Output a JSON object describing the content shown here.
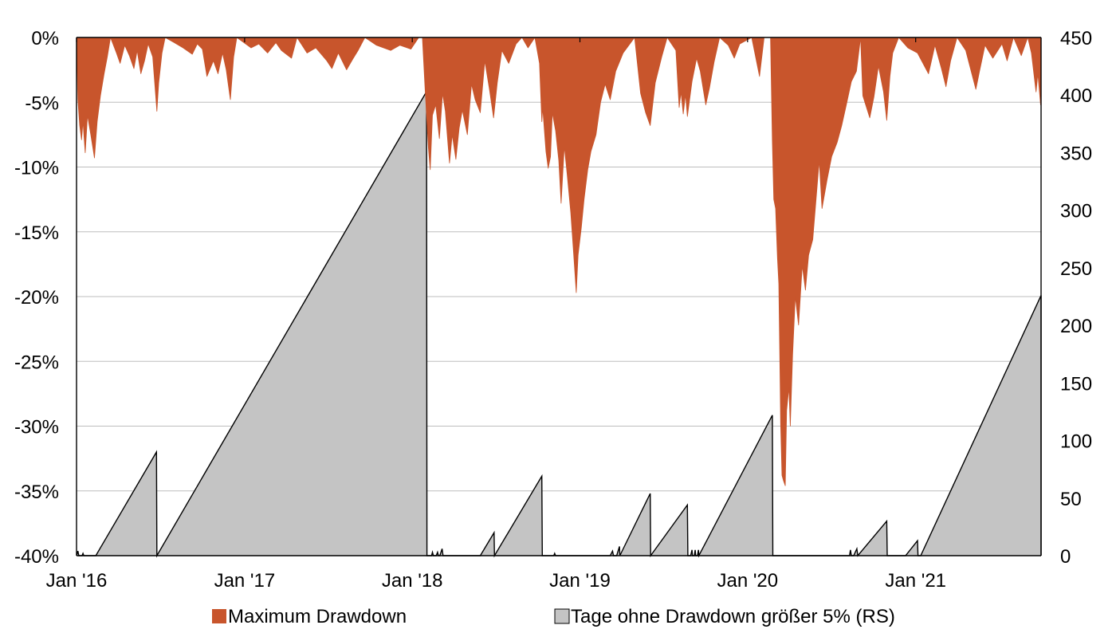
{
  "chart_data": {
    "type": "area",
    "x_ticks": [
      "Jan '16",
      "Jan '17",
      "Jan '18",
      "Jan '19",
      "Jan '20",
      "Jan '21"
    ],
    "x_range": [
      "2016-01-01",
      "2021-10-01"
    ],
    "y_left": {
      "ticks": [
        "0%",
        "-5%",
        "-10%",
        "-15%",
        "-20%",
        "-25%",
        "-30%",
        "-35%",
        "-40%"
      ],
      "min": -40,
      "max": 0
    },
    "y_right": {
      "ticks": [
        "450",
        "400",
        "350",
        "300",
        "250",
        "200",
        "150",
        "100",
        "50",
        "0"
      ],
      "min": 0,
      "max": 450
    },
    "grid": true,
    "legend_position": "bottom",
    "colors": {
      "drawdown": "#C8552C",
      "days": "#C4C4C4",
      "days_outline": "#000000",
      "grid": "#BDBDBD"
    },
    "series": [
      {
        "name": "Maximum Drawdown",
        "axis": "left",
        "type": "area",
        "points": [
          [
            "2016-01-01",
            0
          ],
          [
            "2016-01-04",
            -4.8
          ],
          [
            "2016-01-08",
            -6.8
          ],
          [
            "2016-01-12",
            -7.9
          ],
          [
            "2016-01-15",
            -6.5
          ],
          [
            "2016-01-20",
            -8.9
          ],
          [
            "2016-01-25",
            -6.0
          ],
          [
            "2016-02-01",
            -7.5
          ],
          [
            "2016-02-09",
            -9.3
          ],
          [
            "2016-02-15",
            -6.5
          ],
          [
            "2016-02-22",
            -4.5
          ],
          [
            "2016-03-01",
            -2.8
          ],
          [
            "2016-03-08",
            -1.5
          ],
          [
            "2016-03-15",
            0
          ],
          [
            "2016-03-28",
            -1.2
          ],
          [
            "2016-04-05",
            -2.0
          ],
          [
            "2016-04-15",
            -0.6
          ],
          [
            "2016-04-25",
            -1.4
          ],
          [
            "2016-05-05",
            -2.4
          ],
          [
            "2016-05-12",
            -1.0
          ],
          [
            "2016-05-20",
            -2.8
          ],
          [
            "2016-05-28",
            -1.8
          ],
          [
            "2016-06-05",
            -0.5
          ],
          [
            "2016-06-15",
            -1.5
          ],
          [
            "2016-06-24",
            -5.7
          ],
          [
            "2016-06-28",
            -3.5
          ],
          [
            "2016-07-05",
            -1.2
          ],
          [
            "2016-07-12",
            0
          ],
          [
            "2016-08-01",
            -0.4
          ],
          [
            "2016-08-20",
            -0.8
          ],
          [
            "2016-09-09",
            -1.3
          ],
          [
            "2016-09-20",
            -0.5
          ],
          [
            "2016-10-01",
            -0.9
          ],
          [
            "2016-10-11",
            -3.0
          ],
          [
            "2016-10-25",
            -1.8
          ],
          [
            "2016-11-04",
            -2.8
          ],
          [
            "2016-11-14",
            -1.2
          ],
          [
            "2016-11-22",
            -2.5
          ],
          [
            "2016-12-01",
            -4.8
          ],
          [
            "2016-12-08",
            -1.5
          ],
          [
            "2016-12-15",
            0
          ],
          [
            "2017-01-15",
            -0.8
          ],
          [
            "2017-02-01",
            -0.5
          ],
          [
            "2017-02-20",
            -1.2
          ],
          [
            "2017-03-10",
            -0.4
          ],
          [
            "2017-03-22",
            -1.0
          ],
          [
            "2017-04-13",
            -1.6
          ],
          [
            "2017-04-25",
            0
          ],
          [
            "2017-05-17",
            -1.2
          ],
          [
            "2017-06-05",
            -0.8
          ],
          [
            "2017-06-29",
            -1.8
          ],
          [
            "2017-07-10",
            -2.4
          ],
          [
            "2017-07-24",
            -1.2
          ],
          [
            "2017-08-11",
            -2.5
          ],
          [
            "2017-08-24",
            -1.7
          ],
          [
            "2017-09-05",
            -1.0
          ],
          [
            "2017-09-20",
            0
          ],
          [
            "2017-10-15",
            -0.6
          ],
          [
            "2017-11-15",
            -1.0
          ],
          [
            "2017-12-05",
            -0.6
          ],
          [
            "2017-12-29",
            -0.9
          ],
          [
            "2018-01-15",
            0
          ],
          [
            "2018-01-23",
            0
          ],
          [
            "2018-01-29",
            -4.0
          ],
          [
            "2018-02-02",
            -6.5
          ],
          [
            "2018-02-05",
            -8.5
          ],
          [
            "2018-02-09",
            -10.2
          ],
          [
            "2018-02-14",
            -6.0
          ],
          [
            "2018-02-21",
            -5.2
          ],
          [
            "2018-03-01",
            -7.8
          ],
          [
            "2018-03-08",
            -4.3
          ],
          [
            "2018-03-14",
            -5.7
          ],
          [
            "2018-03-23",
            -9.7
          ],
          [
            "2018-03-29",
            -7.5
          ],
          [
            "2018-04-06",
            -9.4
          ],
          [
            "2018-04-13",
            -7.0
          ],
          [
            "2018-04-20",
            -5.6
          ],
          [
            "2018-05-01",
            -7.5
          ],
          [
            "2018-05-10",
            -3.6
          ],
          [
            "2018-05-18",
            -4.8
          ],
          [
            "2018-05-29",
            -5.8
          ],
          [
            "2018-06-08",
            -1.8
          ],
          [
            "2018-06-18",
            -4.0
          ],
          [
            "2018-06-27",
            -6.2
          ],
          [
            "2018-07-05",
            -3.5
          ],
          [
            "2018-07-15",
            -1.0
          ],
          [
            "2018-07-30",
            -2.0
          ],
          [
            "2018-08-15",
            -0.5
          ],
          [
            "2018-08-28",
            0
          ],
          [
            "2018-09-10",
            -0.8
          ],
          [
            "2018-09-25",
            0
          ],
          [
            "2018-10-05",
            -2.0
          ],
          [
            "2018-10-10",
            -6.5
          ],
          [
            "2018-10-12",
            -5.4
          ],
          [
            "2018-10-19",
            -8.8
          ],
          [
            "2018-10-24",
            -10.1
          ],
          [
            "2018-10-29",
            -9.2
          ],
          [
            "2018-11-02",
            -5.8
          ],
          [
            "2018-11-09",
            -7.2
          ],
          [
            "2018-11-16",
            -9.5
          ],
          [
            "2018-11-21",
            -12.8
          ],
          [
            "2018-11-28",
            -8.4
          ],
          [
            "2018-12-04",
            -10.5
          ],
          [
            "2018-12-12",
            -13.5
          ],
          [
            "2018-12-18",
            -16.5
          ],
          [
            "2018-12-24",
            -19.7
          ],
          [
            "2018-12-28",
            -16.8
          ],
          [
            "2019-01-04",
            -14.7
          ],
          [
            "2019-01-10",
            -12.5
          ],
          [
            "2019-01-18",
            -10.2
          ],
          [
            "2019-01-25",
            -8.8
          ],
          [
            "2019-02-05",
            -7.5
          ],
          [
            "2019-02-15",
            -5.0
          ],
          [
            "2019-02-25",
            -3.6
          ],
          [
            "2019-03-08",
            -4.8
          ],
          [
            "2019-03-20",
            -2.6
          ],
          [
            "2019-04-05",
            -1.2
          ],
          [
            "2019-04-30",
            0
          ],
          [
            "2019-05-13",
            -4.3
          ],
          [
            "2019-05-24",
            -5.8
          ],
          [
            "2019-06-03",
            -6.8
          ],
          [
            "2019-06-14",
            -3.5
          ],
          [
            "2019-06-28",
            -1.5
          ],
          [
            "2019-07-10",
            0
          ],
          [
            "2019-07-29",
            -1.0
          ],
          [
            "2019-08-05",
            -5.4
          ],
          [
            "2019-08-09",
            -4.2
          ],
          [
            "2019-08-14",
            -5.9
          ],
          [
            "2019-08-19",
            -4.4
          ],
          [
            "2019-08-23",
            -6.1
          ],
          [
            "2019-09-02",
            -3.4
          ],
          [
            "2019-09-12",
            -1.6
          ],
          [
            "2019-09-20",
            -2.6
          ],
          [
            "2019-10-02",
            -5.2
          ],
          [
            "2019-10-10",
            -3.9
          ],
          [
            "2019-10-20",
            -1.9
          ],
          [
            "2019-11-01",
            0
          ],
          [
            "2019-11-20",
            -0.6
          ],
          [
            "2019-12-03",
            -1.6
          ],
          [
            "2019-12-15",
            -0.5
          ],
          [
            "2020-01-10",
            0
          ],
          [
            "2020-01-27",
            -3.0
          ],
          [
            "2020-01-31",
            -1.8
          ],
          [
            "2020-02-06",
            0
          ],
          [
            "2020-02-20",
            0
          ],
          [
            "2020-02-24",
            -8.0
          ],
          [
            "2020-02-27",
            -12.5
          ],
          [
            "2020-03-02",
            -13.2
          ],
          [
            "2020-03-06",
            -17.0
          ],
          [
            "2020-03-09",
            -19.0
          ],
          [
            "2020-03-12",
            -26.8
          ],
          [
            "2020-03-13",
            -29.8
          ],
          [
            "2020-03-16",
            -33.8
          ],
          [
            "2020-03-19",
            -34.2
          ],
          [
            "2020-03-23",
            -34.6
          ],
          [
            "2020-03-26",
            -28.8
          ],
          [
            "2020-03-31",
            -27.0
          ],
          [
            "2020-04-03",
            -30.0
          ],
          [
            "2020-04-08",
            -24.5
          ],
          [
            "2020-04-14",
            -20.0
          ],
          [
            "2020-04-21",
            -22.2
          ],
          [
            "2020-04-29",
            -17.6
          ],
          [
            "2020-05-06",
            -19.5
          ],
          [
            "2020-05-13",
            -16.8
          ],
          [
            "2020-05-22",
            -15.6
          ],
          [
            "2020-06-05",
            -9.5
          ],
          [
            "2020-06-11",
            -13.2
          ],
          [
            "2020-06-22",
            -11.0
          ],
          [
            "2020-07-02",
            -9.2
          ],
          [
            "2020-07-14",
            -8.1
          ],
          [
            "2020-07-24",
            -6.8
          ],
          [
            "2020-08-03",
            -5.2
          ],
          [
            "2020-08-14",
            -3.4
          ],
          [
            "2020-08-25",
            -2.6
          ],
          [
            "2020-09-03",
            0
          ],
          [
            "2020-09-08",
            -4.5
          ],
          [
            "2020-09-23",
            -6.2
          ],
          [
            "2020-10-02",
            -4.6
          ],
          [
            "2020-10-12",
            -2.2
          ],
          [
            "2020-10-23",
            -4.2
          ],
          [
            "2020-10-30",
            -6.4
          ],
          [
            "2020-11-06",
            -3.0
          ],
          [
            "2020-11-12",
            -1.2
          ],
          [
            "2020-11-25",
            0
          ],
          [
            "2020-12-15",
            -0.8
          ],
          [
            "2021-01-05",
            -1.2
          ],
          [
            "2021-01-29",
            -2.8
          ],
          [
            "2021-02-12",
            -0.6
          ],
          [
            "2021-02-26",
            -2.4
          ],
          [
            "2021-03-08",
            -3.8
          ],
          [
            "2021-03-18",
            -1.8
          ],
          [
            "2021-04-01",
            0
          ],
          [
            "2021-04-20",
            -1.0
          ],
          [
            "2021-05-12",
            -4.0
          ],
          [
            "2021-05-20",
            -2.6
          ],
          [
            "2021-06-01",
            -0.6
          ],
          [
            "2021-06-18",
            -1.6
          ],
          [
            "2021-07-08",
            -0.5
          ],
          [
            "2021-07-19",
            -1.8
          ],
          [
            "2021-08-02",
            0
          ],
          [
            "2021-08-19",
            -1.4
          ],
          [
            "2021-09-02",
            0
          ],
          [
            "2021-09-10",
            -1.2
          ],
          [
            "2021-09-20",
            -4.2
          ],
          [
            "2021-09-24",
            -2.8
          ],
          [
            "2021-09-30",
            -5.2
          ],
          [
            "2021-10-01",
            0
          ]
        ]
      },
      {
        "name": "Tage ohne Drawdown größer 5% (RS)",
        "axis": "right",
        "type": "area",
        "points": [
          [
            "2016-01-01",
            0
          ],
          [
            "2016-01-04",
            4
          ],
          [
            "2016-01-06",
            0
          ],
          [
            "2016-01-13",
            0
          ],
          [
            "2016-01-15",
            2
          ],
          [
            "2016-01-17",
            0
          ],
          [
            "2016-02-12",
            0
          ],
          [
            "2016-06-23",
            90
          ],
          [
            "2016-06-24",
            0
          ],
          [
            "2018-02-01",
            403
          ],
          [
            "2018-02-02",
            0
          ],
          [
            "2018-02-12",
            0
          ],
          [
            "2018-02-14",
            3
          ],
          [
            "2018-02-16",
            0
          ],
          [
            "2018-02-22",
            0
          ],
          [
            "2018-02-25",
            3
          ],
          [
            "2018-02-27",
            0
          ],
          [
            "2018-03-02",
            0
          ],
          [
            "2018-03-07",
            6
          ],
          [
            "2018-03-09",
            0
          ],
          [
            "2018-05-29",
            0
          ],
          [
            "2018-06-28",
            20
          ],
          [
            "2018-06-29",
            0
          ],
          [
            "2018-10-10",
            69
          ],
          [
            "2018-10-11",
            0
          ],
          [
            "2018-11-05",
            0
          ],
          [
            "2018-11-07",
            2
          ],
          [
            "2018-11-09",
            0
          ],
          [
            "2018-12-27",
            0
          ],
          [
            "2019-01-04",
            0
          ],
          [
            "2019-03-08",
            0
          ],
          [
            "2019-03-13",
            4
          ],
          [
            "2019-03-15",
            0
          ],
          [
            "2019-03-22",
            0
          ],
          [
            "2019-03-28",
            8
          ],
          [
            "2019-03-29",
            0
          ],
          [
            "2019-06-03",
            54
          ],
          [
            "2019-06-04",
            0
          ],
          [
            "2019-08-23",
            44
          ],
          [
            "2019-08-24",
            0
          ],
          [
            "2019-08-30",
            0
          ],
          [
            "2019-09-02",
            5
          ],
          [
            "2019-09-03",
            0
          ],
          [
            "2019-09-07",
            0
          ],
          [
            "2019-09-09",
            5
          ],
          [
            "2019-09-10",
            0
          ],
          [
            "2019-09-14",
            0
          ],
          [
            "2019-09-16",
            5
          ],
          [
            "2019-09-17",
            0
          ],
          [
            "2020-02-24",
            122
          ],
          [
            "2020-02-25",
            0
          ],
          [
            "2020-08-01",
            0
          ],
          [
            "2020-08-10",
            0
          ],
          [
            "2020-08-12",
            5
          ],
          [
            "2020-08-14",
            0
          ],
          [
            "2020-08-19",
            0
          ],
          [
            "2020-08-26",
            6
          ],
          [
            "2020-08-28",
            0
          ],
          [
            "2020-10-30",
            30
          ],
          [
            "2020-10-31",
            0
          ],
          [
            "2020-12-10",
            0
          ],
          [
            "2021-01-05",
            13
          ],
          [
            "2021-01-06",
            0
          ],
          [
            "2021-01-12",
            0
          ],
          [
            "2021-10-01",
            226
          ],
          [
            "2021-10-01",
            0
          ]
        ]
      }
    ]
  },
  "legend": [
    {
      "label": "Maximum Drawdown",
      "color": "#C8552C"
    },
    {
      "label": "Tage ohne Drawdown größer 5% (RS)",
      "color": "#C4C4C4"
    }
  ]
}
